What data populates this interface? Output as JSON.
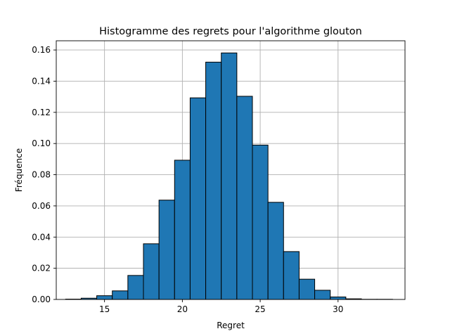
{
  "chart_data": {
    "type": "bar",
    "title": "Histogramme des regrets pour l'algorithme glouton",
    "xlabel": "Regret",
    "ylabel": "Fréquence",
    "xlim": [
      11.9,
      34.3
    ],
    "ylim": [
      0,
      0.1659
    ],
    "xticks": [
      15,
      20,
      25,
      30
    ],
    "yticks": [
      0.0,
      0.02,
      0.04,
      0.06,
      0.08,
      0.1,
      0.12,
      0.14,
      0.16
    ],
    "ytick_labels": [
      "0.00",
      "0.02",
      "0.04",
      "0.06",
      "0.08",
      "0.10",
      "0.12",
      "0.14",
      "0.16"
    ],
    "grid": true,
    "bar_color": "#1f77b4",
    "bin_edges": [
      12.5,
      13.5,
      14.5,
      15.5,
      16.5,
      17.5,
      18.5,
      19.5,
      20.5,
      21.5,
      22.5,
      23.5,
      24.5,
      25.5,
      26.5,
      27.5,
      28.5,
      29.5,
      30.5,
      31.5,
      32.5,
      33.5
    ],
    "values": [
      0.0002,
      0.0008,
      0.0024,
      0.0055,
      0.0154,
      0.0357,
      0.0637,
      0.0893,
      0.1293,
      0.1522,
      0.1581,
      0.1303,
      0.099,
      0.0623,
      0.0307,
      0.013,
      0.0059,
      0.0016,
      0.0004,
      0.0001,
      0.0001
    ]
  }
}
